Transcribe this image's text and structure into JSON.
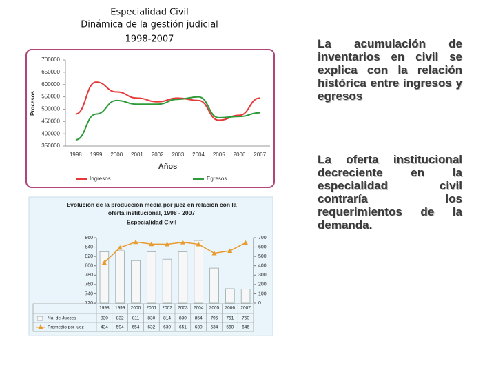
{
  "slide": {
    "title_lines": [
      "Especialidad Civil",
      "Dinámica de la gestión judicial",
      "1998-2007"
    ],
    "paragraphs": [
      "La acumulación de inventarios en civil se explica con la relación histórica entre ingresos y egresos",
      "La oferta institucional decreciente en la especialidad civil contraría los requerimientos de la demanda."
    ]
  },
  "chart_data": [
    {
      "type": "line",
      "x_label": "Años",
      "y_label": "Procesos",
      "categories": [
        "1998",
        "1999",
        "2000",
        "2001",
        "2002",
        "2003",
        "2004",
        "2005",
        "2006",
        "2007"
      ],
      "series": [
        {
          "name": "Ingresos",
          "color": "#e8393a",
          "values": [
            480000,
            610000,
            570000,
            545000,
            530000,
            545000,
            535000,
            455000,
            475000,
            545000
          ]
        },
        {
          "name": "Egresos",
          "color": "#2e9a3a",
          "values": [
            375000,
            480000,
            535000,
            520000,
            520000,
            540000,
            550000,
            465000,
            470000,
            485000
          ]
        }
      ],
      "ylim": [
        350000,
        700000
      ],
      "yticks": [
        350000,
        400000,
        450000,
        500000,
        550000,
        600000,
        650000,
        700000
      ]
    },
    {
      "type": "bar_line",
      "title": "Evolución de la producción media por juez en relación con la oferta institucional, 1998 - 2007",
      "subtitle": "Especialidad Civil",
      "categories": [
        "1998",
        "1999",
        "2000",
        "2001",
        "2002",
        "2003",
        "2004",
        "2005",
        "2006",
        "2007"
      ],
      "series": [
        {
          "name": "No. de Jueces",
          "color": "#f7f7f7",
          "values": [
            830,
            832,
            811,
            830,
            814,
            830,
            854,
            795,
            751,
            750
          ]
        },
        {
          "name": "Promedio por juez",
          "color": "#e89a2c",
          "axis": "y2",
          "values": [
            434,
            594,
            654,
            632,
            630,
            651,
            630,
            534,
            560,
            646
          ]
        }
      ],
      "ylim": [
        720,
        860
      ],
      "yticks": [
        720,
        740,
        760,
        780,
        800,
        820,
        840,
        860
      ],
      "y2lim": [
        0,
        700
      ],
      "y2ticks": [
        0,
        100,
        200,
        300,
        400,
        500,
        600,
        700
      ]
    }
  ]
}
